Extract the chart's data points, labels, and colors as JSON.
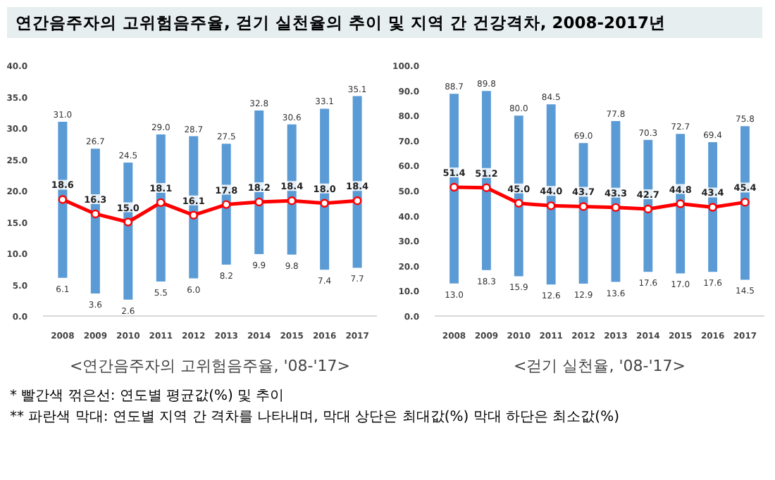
{
  "chart_data": [
    {
      "type": "bar",
      "title": "연간음주자의 고위험음주율, 걷기 실천율의 추이 및 지역 간 건강격차, 2008-2017년",
      "xlabel": "<연간음주자의 고위험음주율, '08-'17>",
      "categories": [
        "2008",
        "2009",
        "2010",
        "2011",
        "2012",
        "2013",
        "2014",
        "2015",
        "2016",
        "2017"
      ],
      "ylim": [
        0,
        40
      ],
      "yticks": [
        {
          "value": 0,
          "label": "0.0"
        },
        {
          "value": 5,
          "label": "5.0"
        },
        {
          "value": 10,
          "label": "10.0"
        },
        {
          "value": 15,
          "label": "15.0"
        },
        {
          "value": 20,
          "label": "20.0"
        },
        {
          "value": 25,
          "label": "25.0"
        },
        {
          "value": 30,
          "label": "30.0"
        },
        {
          "value": 35,
          "label": "35.0"
        },
        {
          "value": 40,
          "label": "40.0"
        }
      ],
      "grid": false,
      "marker": "circle",
      "series": [
        {
          "color": "#5b9bd5",
          "base": [
            6.1,
            3.6,
            2.6,
            5.5,
            6.0,
            8.2,
            9.9,
            9.8,
            7.4,
            7.7
          ],
          "values": [
            24.9,
            23.1,
            21.9,
            23.5,
            22.7,
            19.3,
            22.9,
            20.8,
            25.7,
            27.4
          ],
          "value_labels": [
            "31.0",
            "26.7",
            "24.5",
            "29.0",
            "28.7",
            "27.5",
            "32.8",
            "30.6",
            "33.1",
            "35.1"
          ]
        },
        {
          "type": "line",
          "color": "#ff0000",
          "values": [
            18.6,
            16.3,
            15.0,
            18.1,
            16.1,
            17.8,
            18.2,
            18.4,
            18.0,
            18.4
          ],
          "value_labels": [
            "18.6",
            "16.3",
            "15.0",
            "18.1",
            "16.1",
            "17.8",
            "18.2",
            "18.4",
            "18.0",
            "18.4"
          ]
        }
      ],
      "annotations": [
        {
          "text": "6.1",
          "x": "2008",
          "y": 6.1
        },
        {
          "text": "3.6",
          "x": "2009",
          "y": 3.6
        },
        {
          "text": "2.6",
          "x": "2010",
          "y": 2.6
        },
        {
          "text": "5.5",
          "x": "2011",
          "y": 5.5
        },
        {
          "text": "6.0",
          "x": "2012",
          "y": 6.0
        },
        {
          "text": "8.2",
          "x": "2013",
          "y": 8.2
        },
        {
          "text": "9.9",
          "x": "2014",
          "y": 9.9
        },
        {
          "text": "9.8",
          "x": "2015",
          "y": 9.8
        },
        {
          "text": "7.4",
          "x": "2016",
          "y": 7.4
        },
        {
          "text": "7.7",
          "x": "2017",
          "y": 7.7
        },
        "* 빨간색 꺾은선: 연도별 평균값(%) 및 추이",
        "** 파란색 막대: 연도별 지역 간 격차를 나타내며, 막대 상단은 최대값(%) 막대 하단은 최소값(%)"
      ]
    },
    {
      "type": "bar",
      "xlabel": "<걷기 실천율, '08-'17>",
      "categories": [
        "2008",
        "2009",
        "2010",
        "2011",
        "2012",
        "2013",
        "2014",
        "2015",
        "2016",
        "2017"
      ],
      "ylim": [
        0,
        100
      ],
      "yticks": [
        {
          "value": 0,
          "label": "0.0"
        },
        {
          "value": 10,
          "label": "10.0"
        },
        {
          "value": 20,
          "label": "20.0"
        },
        {
          "value": 30,
          "label": "30.0"
        },
        {
          "value": 40,
          "label": "40.0"
        },
        {
          "value": 50,
          "label": "50.0"
        },
        {
          "value": 60,
          "label": "60.0"
        },
        {
          "value": 70,
          "label": "70.0"
        },
        {
          "value": 80,
          "label": "80.0"
        },
        {
          "value": 90,
          "label": "90.0"
        },
        {
          "value": 100,
          "label": "100.0"
        }
      ],
      "grid": false,
      "marker": "circle",
      "series": [
        {
          "color": "#5b9bd5",
          "base": [
            13.0,
            18.3,
            15.9,
            12.6,
            12.9,
            13.6,
            17.6,
            17.0,
            17.6,
            14.5
          ],
          "values": [
            75.7,
            71.5,
            64.1,
            71.9,
            56.1,
            64.2,
            52.7,
            55.7,
            51.8,
            61.3
          ],
          "value_labels": [
            "88.7",
            "89.8",
            "80.0",
            "84.5",
            "69.0",
            "77.8",
            "70.3",
            "72.7",
            "69.4",
            "75.8"
          ]
        },
        {
          "type": "line",
          "color": "#ff0000",
          "values": [
            51.4,
            51.2,
            45.0,
            44.0,
            43.7,
            43.3,
            42.7,
            44.8,
            43.4,
            45.4
          ],
          "value_labels": [
            "51.4",
            "51.2",
            "45.0",
            "44.0",
            "43.7",
            "43.3",
            "42.7",
            "44.8",
            "43.4",
            "45.4"
          ]
        }
      ],
      "annotations": [
        {
          "text": "13.0",
          "x": "2008",
          "y": 13.0
        },
        {
          "text": "18.3",
          "x": "2009",
          "y": 18.3
        },
        {
          "text": "15.9",
          "x": "2010",
          "y": 15.9
        },
        {
          "text": "12.6",
          "x": "2011",
          "y": 12.6
        },
        {
          "text": "12.9",
          "x": "2012",
          "y": 12.9
        },
        {
          "text": "13.6",
          "x": "2013",
          "y": 13.6
        },
        {
          "text": "17.6",
          "x": "2014",
          "y": 17.6
        },
        {
          "text": "17.0",
          "x": "2015",
          "y": 17.0
        },
        {
          "text": "17.6",
          "x": "2016",
          "y": 17.6
        },
        {
          "text": "14.5",
          "x": "2017",
          "y": 14.5
        }
      ]
    }
  ]
}
